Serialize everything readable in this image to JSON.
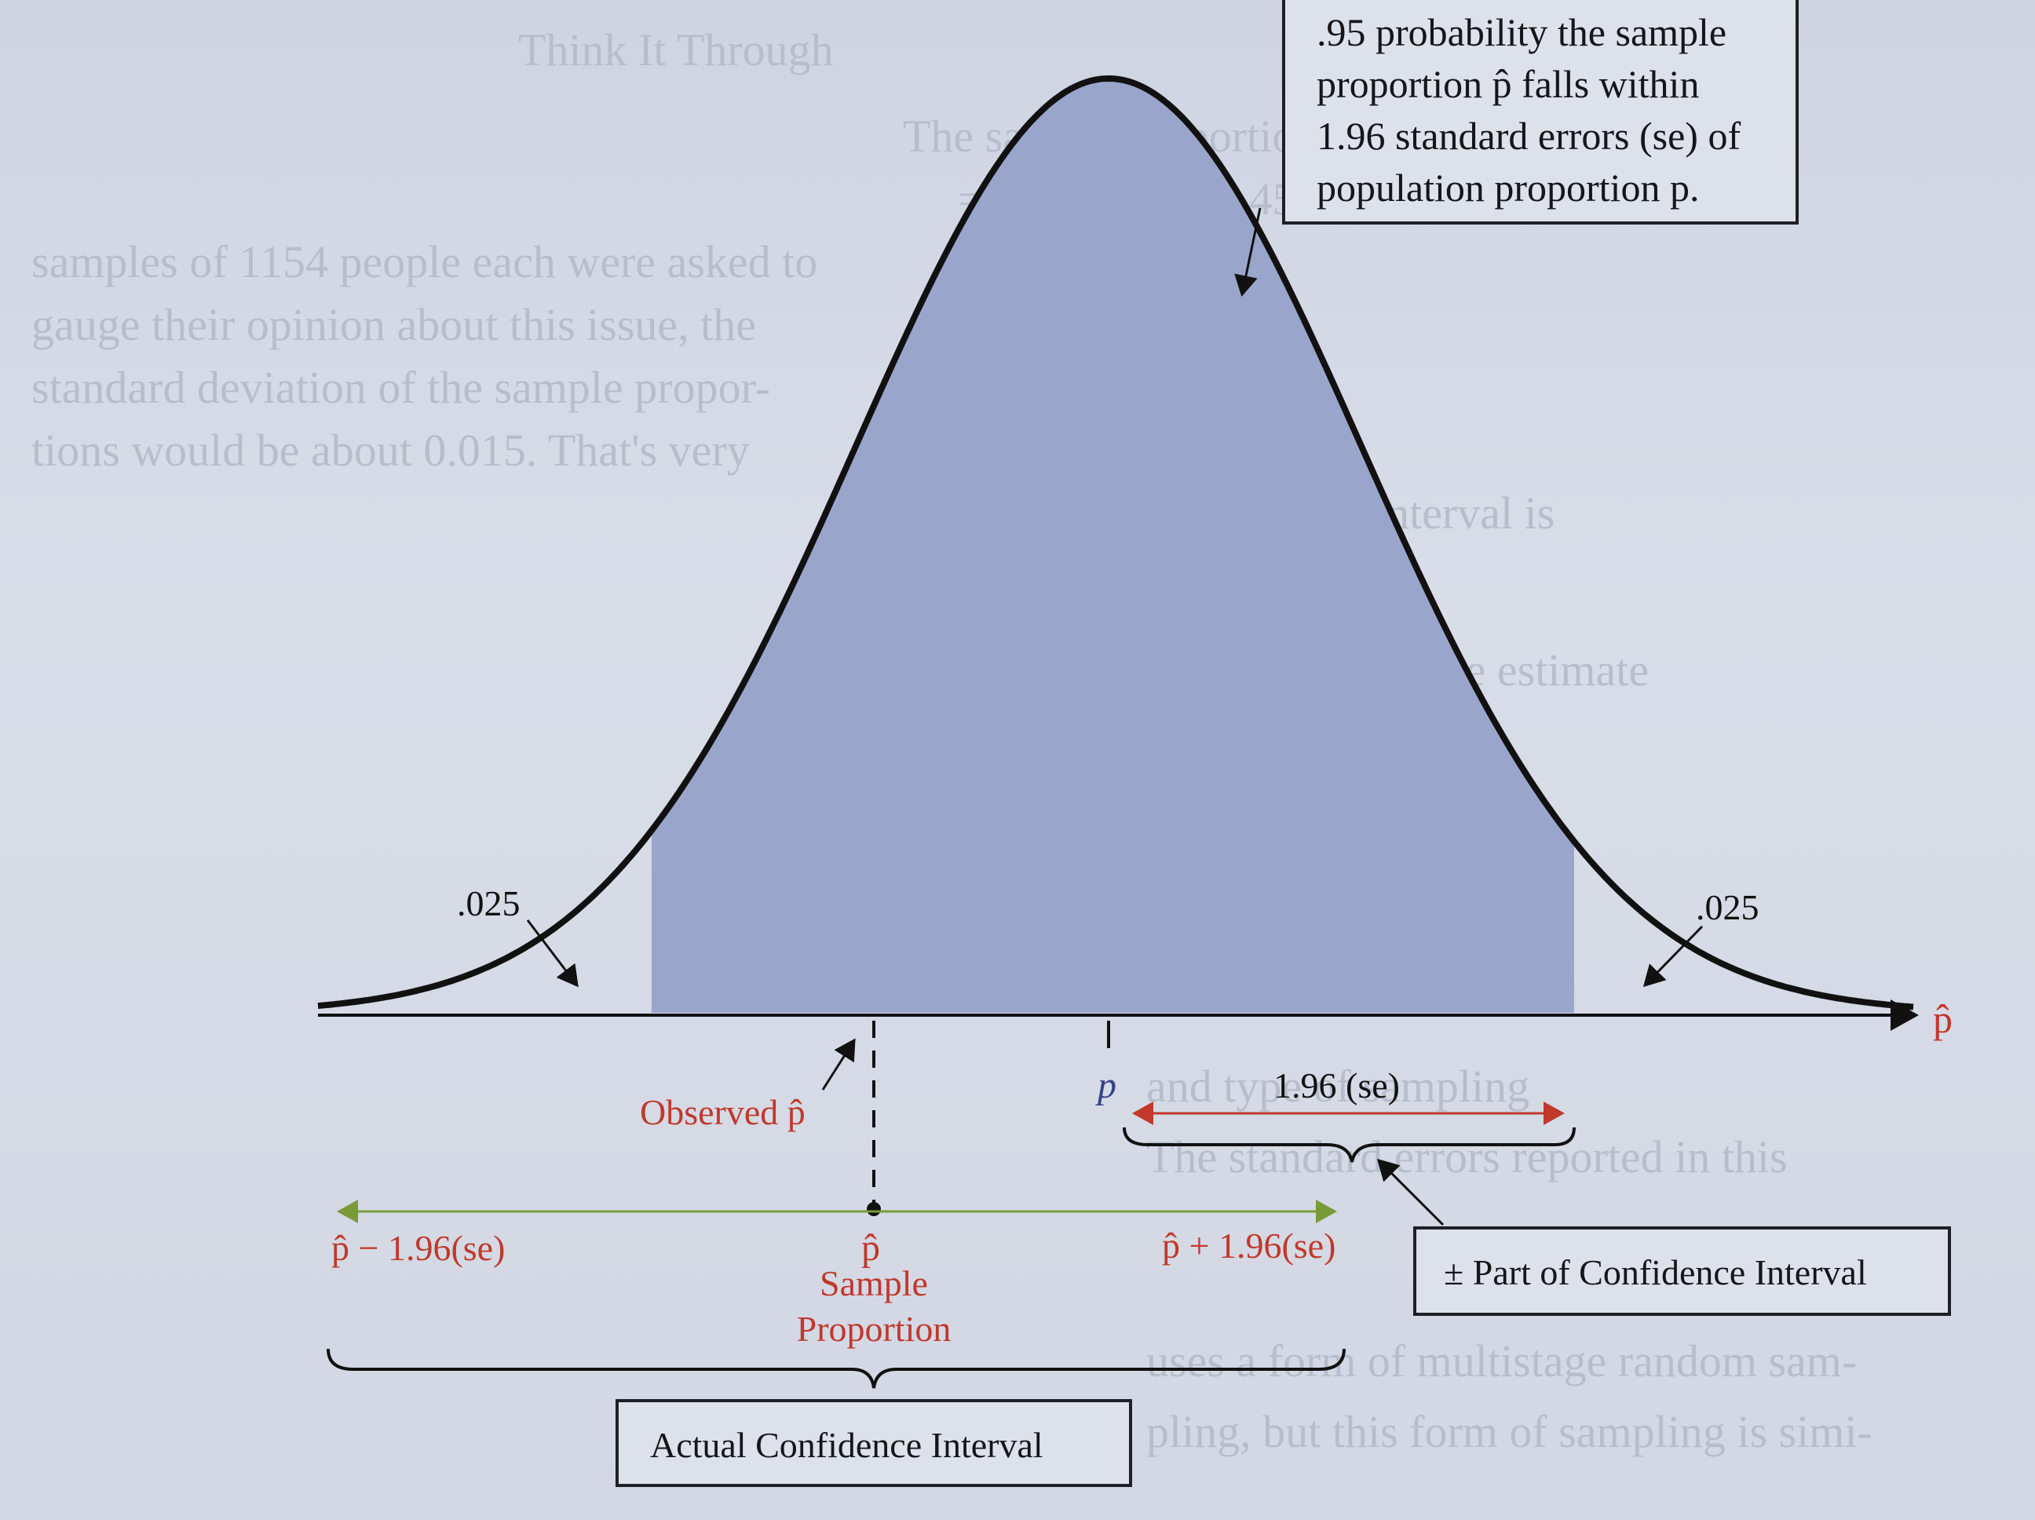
{
  "diagram": {
    "callout_lines": [
      ".95 probability the sample",
      "proportion p̂ falls within",
      "1.96 standard errors (se) of",
      "population proportion p."
    ],
    "left_tail": ".025",
    "right_tail": ".025",
    "axis_label": "p̂",
    "p_label": "p",
    "se_label": "1.96 (se)",
    "observed_label": "Observed p̂",
    "lower_bound": "p̂ − 1.96(se)",
    "phat_label": "p̂",
    "sample_proportion": [
      "Sample",
      "Proportion"
    ],
    "upper_bound": "p̂ + 1.96(se)",
    "pm_part": "± Part of Confidence Interval",
    "actual_ci": "Actual Confidence Interval"
  },
  "colors": {
    "shade": "#9aa5cb",
    "curve": "#111111",
    "red": "#c0392b",
    "green": "#7a9a3a",
    "navy": "#33408a"
  }
}
